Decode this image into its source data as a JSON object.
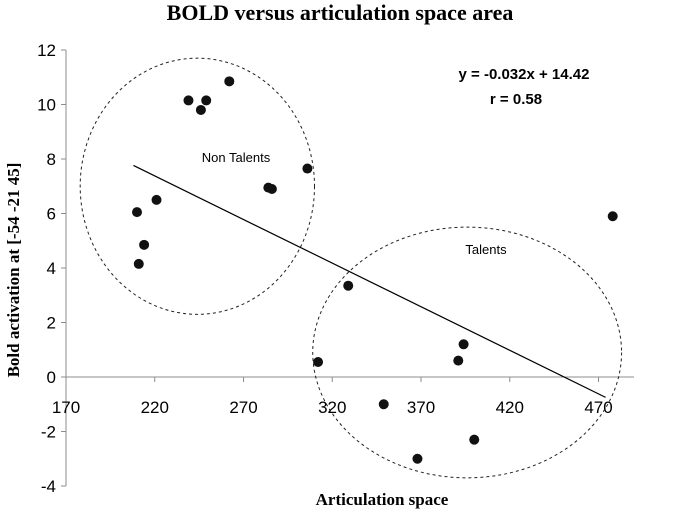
{
  "chart_data": {
    "type": "scatter",
    "title": "BOLD versus articulation space area",
    "xlabel": "Articulation space",
    "ylabel": "Bold activation at [-54 -21 45]",
    "xlim": [
      170,
      490
    ],
    "ylim": [
      -4,
      12
    ],
    "xticks": [
      170,
      220,
      270,
      320,
      370,
      420,
      470
    ],
    "yticks": [
      -4,
      -2,
      0,
      2,
      4,
      6,
      8,
      10,
      12
    ],
    "grid": false,
    "series": [
      {
        "x": [
          210,
          211,
          214,
          221,
          239,
          246,
          249,
          262,
          284,
          286,
          306,
          329,
          312,
          349,
          391,
          394,
          368,
          400,
          478
        ],
        "y": [
          6.05,
          4.15,
          4.85,
          6.5,
          10.15,
          9.8,
          10.15,
          10.85,
          6.95,
          6.9,
          7.65,
          3.35,
          0.55,
          -1.0,
          0.6,
          1.2,
          -3.0,
          -2.3,
          5.9
        ],
        "color": "#111111"
      }
    ],
    "trendline": {
      "slope": -0.032,
      "intercept": 14.42,
      "x_range": [
        208,
        474
      ]
    },
    "annotations": {
      "equation": "y = -0.032x + 14.42",
      "r": "r = 0.58",
      "group1": "Non Talents",
      "group2": "Talents"
    },
    "clusters": [
      {
        "cx": 244,
        "cy": 7.0,
        "rx": 66,
        "ry": 4.7
      },
      {
        "cx": 396,
        "cy": 0.9,
        "rx": 87,
        "ry": 4.6
      }
    ]
  }
}
